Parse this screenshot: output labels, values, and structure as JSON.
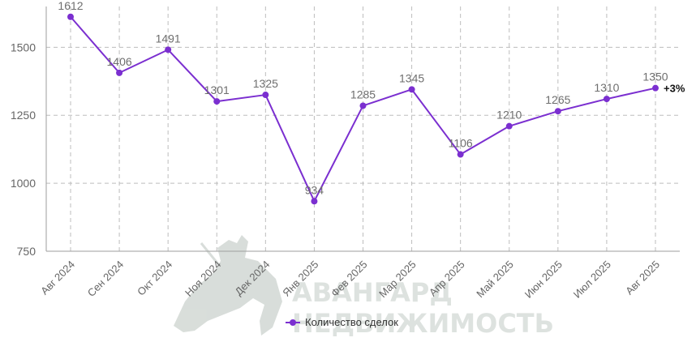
{
  "chart_data": {
    "type": "line",
    "categories": [
      "Авг 2024",
      "Сен 2024",
      "Окт 2024",
      "Ноя 2024",
      "Дек 2024",
      "Янв 2025",
      "Фев 2025",
      "Мар 2025",
      "Апр 2025",
      "Май 2025",
      "Июн 2025",
      "Июл 2025",
      "Авг 2025"
    ],
    "series": [
      {
        "name": "Количество сделок",
        "values": [
          1612,
          1406,
          1491,
          1301,
          1325,
          934,
          1285,
          1345,
          1106,
          1210,
          1265,
          1310,
          1350
        ]
      }
    ],
    "y_ticks": [
      750,
      1000,
      1250,
      1500
    ],
    "ylim": [
      750,
      1650
    ],
    "grid": true,
    "data_labels": true,
    "legend_position": "bottom",
    "annotation": "+3%",
    "colors": {
      "line": "#7b2fd0",
      "grid": "#bdbdbd",
      "axis": "#9e9e9e"
    }
  },
  "watermark": {
    "line1": "АВАНГАРД",
    "line2": "НЕДВИЖИМОСТЬ"
  }
}
